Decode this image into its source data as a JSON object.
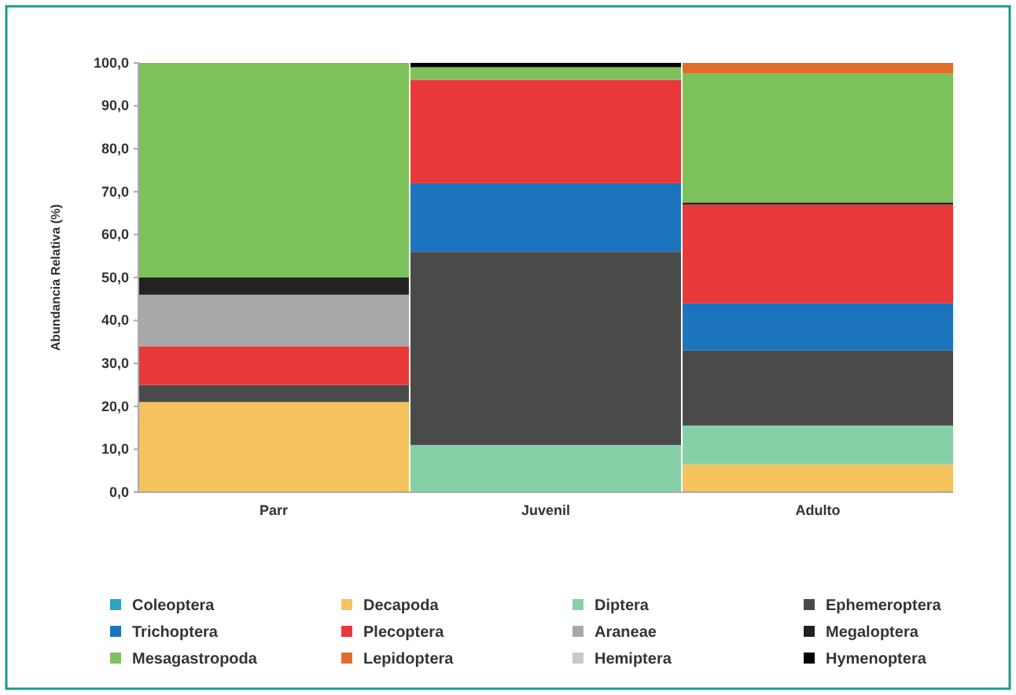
{
  "chart_data": {
    "type": "bar",
    "stacked": true,
    "ylabel": "Abundancia Relativa (%)",
    "categories": [
      "Parr",
      "Juvenil",
      "Adulto"
    ],
    "ylim": [
      0,
      100
    ],
    "yticks": [
      {
        "value": 0,
        "label": "0,0"
      },
      {
        "value": 10,
        "label": "10,0"
      },
      {
        "value": 20,
        "label": "20,0"
      },
      {
        "value": 30,
        "label": "30,0"
      },
      {
        "value": 40,
        "label": "40,0"
      },
      {
        "value": 50,
        "label": "50,0"
      },
      {
        "value": 60,
        "label": "60,0"
      },
      {
        "value": 70,
        "label": "70,0"
      },
      {
        "value": 80,
        "label": "80,0"
      },
      {
        "value": 90,
        "label": "90,0"
      },
      {
        "value": 100,
        "label": "100,0"
      }
    ],
    "legend": "bottom",
    "series": [
      {
        "name": "Coleoptera",
        "color": "#2aa5c4",
        "values": [
          0,
          0,
          0
        ]
      },
      {
        "name": "Decapoda",
        "color": "#f5c35e",
        "values": [
          21,
          0,
          6.5
        ]
      },
      {
        "name": "Diptera",
        "color": "#86d0a8",
        "values": [
          0,
          11,
          9
        ]
      },
      {
        "name": "Ephemeroptera",
        "color": "#4a4a4a",
        "values": [
          4,
          45,
          17.5
        ]
      },
      {
        "name": "Trichoptera",
        "color": "#1c74bd",
        "values": [
          0,
          16,
          11
        ]
      },
      {
        "name": "Plecoptera",
        "color": "#e8383a",
        "values": [
          9,
          24,
          23
        ]
      },
      {
        "name": "Araneae",
        "color": "#a8a8a8",
        "values": [
          12,
          0,
          0
        ]
      },
      {
        "name": "Megaloptera",
        "color": "#222222",
        "values": [
          4,
          0,
          0.5
        ]
      },
      {
        "name": "Mesagastropoda",
        "color": "#7dc15a",
        "values": [
          50,
          3,
          30
        ]
      },
      {
        "name": "Lepidoptera",
        "color": "#e36c2c",
        "values": [
          0,
          0,
          2.5
        ]
      },
      {
        "name": "Hemiptera",
        "color": "#c8c8c8",
        "values": [
          0,
          0,
          0
        ]
      },
      {
        "name": "Hymenoptera",
        "color": "#000000",
        "values": [
          0,
          1,
          0
        ]
      }
    ]
  }
}
